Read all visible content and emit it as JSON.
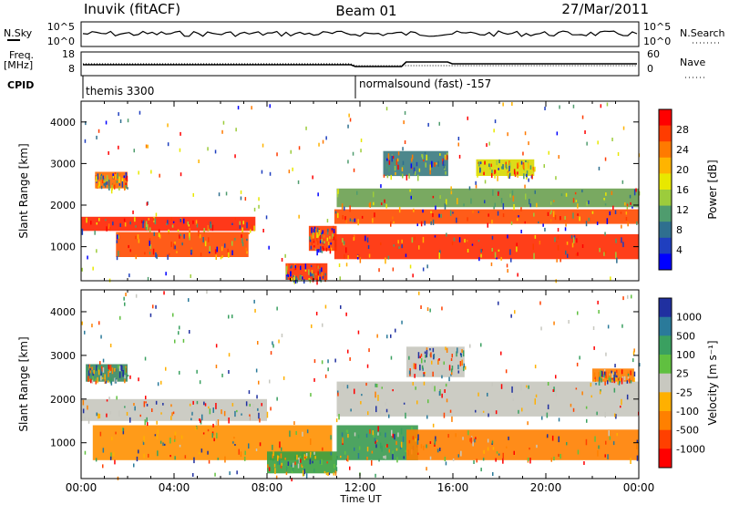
{
  "header": {
    "station": "Inuvik (fitACF)",
    "beam": "Beam 01",
    "date": "27/Mar/2011"
  },
  "strip": {
    "nsky_label": "N.Sky",
    "nsky_ticks": [
      "10^5",
      "10^0"
    ],
    "nsearch_label": "N.Search",
    "nsearch_ticks": [
      "10^5",
      "10^0"
    ],
    "freq_label": "Freq.",
    "freq_unit": "[MHz]",
    "freq_ticks": [
      "18",
      "8"
    ],
    "nave_label": "Nave",
    "nave_ticks": [
      "60",
      "0"
    ],
    "cpid_label": "CPID",
    "cpid_1": "themis 3300",
    "cpid_2": "normalsound (fast) -157"
  },
  "chart_data": [
    {
      "type": "heatmap",
      "panel": "power",
      "ylabel": "Slant Range [km]",
      "xlabel": "Time UT",
      "ylim": [
        180,
        4500
      ],
      "y_ticks": [
        1000,
        2000,
        3000,
        4000
      ],
      "x_ticks": [
        "00:00",
        "04:00",
        "08:00",
        "12:00",
        "16:00",
        "20:00",
        "00:00"
      ],
      "xlim_hours": [
        0,
        24
      ],
      "colorbar_label": "Power [dB]",
      "colorbar_ticks": [
        "28",
        "24",
        "20",
        "16",
        "12",
        "8",
        "4"
      ],
      "colorbar_colors": [
        "#ff0000",
        "#ff3c00",
        "#ff7a00",
        "#ffb400",
        "#e8e800",
        "#9ccc3c",
        "#4f9c6e",
        "#2f6f8f",
        "#1f3fbf",
        "#0000ff"
      ],
      "bands": [
        {
          "t0": 0.0,
          "t1": 7.5,
          "r0": 1380,
          "r1": 1720,
          "color": "#ff2200"
        },
        {
          "t0": 1.5,
          "t1": 7.2,
          "r0": 750,
          "r1": 1350,
          "color": "#ff4a00"
        },
        {
          "t0": 0.6,
          "t1": 2.0,
          "r0": 2400,
          "r1": 2800,
          "color": "#ff6a00"
        },
        {
          "t0": 7.8,
          "t1": 10.0,
          "r0": 200,
          "r1": 1000,
          "color": "#ffffff"
        },
        {
          "t0": 8.8,
          "t1": 10.6,
          "r0": 200,
          "r1": 600,
          "color": "#ff3000"
        },
        {
          "t0": 9.8,
          "t1": 11.0,
          "r0": 900,
          "r1": 1500,
          "color": "#ff3c00"
        },
        {
          "t0": 10.9,
          "t1": 24.0,
          "r0": 700,
          "r1": 1300,
          "color": "#ff2a00"
        },
        {
          "t0": 10.9,
          "t1": 24.0,
          "r0": 1550,
          "r1": 1900,
          "color": "#ff4a00"
        },
        {
          "t0": 11.0,
          "t1": 24.0,
          "r0": 1950,
          "r1": 2400,
          "color": "#6aa050"
        },
        {
          "t0": 13.0,
          "t1": 15.8,
          "r0": 2700,
          "r1": 3300,
          "color": "#3a7a80"
        },
        {
          "t0": 17.0,
          "t1": 19.5,
          "r0": 2700,
          "r1": 3100,
          "color": "#d8d800"
        }
      ]
    },
    {
      "type": "heatmap",
      "panel": "velocity",
      "ylabel": "Slant Range [km]",
      "xlabel": "Time UT",
      "ylim": [
        180,
        4500
      ],
      "y_ticks": [
        1000,
        2000,
        3000,
        4000
      ],
      "x_ticks": [
        "00:00",
        "04:00",
        "08:00",
        "12:00",
        "16:00",
        "20:00",
        "00:00"
      ],
      "xlim_hours": [
        0,
        24
      ],
      "colorbar_label": "Velocity [m s⁻¹]",
      "colorbar_ticks": [
        "1000",
        "500",
        "100",
        "25",
        "-25",
        "-100",
        "-500",
        "-1000"
      ],
      "colorbar_colors": [
        "#2030a0",
        "#2a7a9a",
        "#3aa060",
        "#60c040",
        "#c8c8c0",
        "#ffb000",
        "#ff8000",
        "#ff4000",
        "#ff0000"
      ],
      "bands": [
        {
          "t0": 0.0,
          "t1": 8.0,
          "r0": 1500,
          "r1": 2000,
          "color": "#c6c6be"
        },
        {
          "t0": 0.5,
          "t1": 10.8,
          "r0": 600,
          "r1": 1400,
          "color": "#ff9000"
        },
        {
          "t0": 0.2,
          "t1": 2.0,
          "r0": 2400,
          "r1": 2800,
          "color": "#3a8a60"
        },
        {
          "t0": 8.0,
          "t1": 11.0,
          "r0": 300,
          "r1": 800,
          "color": "#3aa040"
        },
        {
          "t0": 11.0,
          "t1": 14.5,
          "r0": 600,
          "r1": 1400,
          "color": "#3a9a50"
        },
        {
          "t0": 14.0,
          "t1": 24.0,
          "r0": 600,
          "r1": 1300,
          "color": "#ff8000"
        },
        {
          "t0": 11.0,
          "t1": 24.0,
          "r0": 1600,
          "r1": 2400,
          "color": "#c6c6be"
        },
        {
          "t0": 14.0,
          "t1": 16.5,
          "r0": 2500,
          "r1": 3200,
          "color": "#c6c6be"
        },
        {
          "t0": 22.0,
          "t1": 23.8,
          "r0": 2400,
          "r1": 2700,
          "color": "#ff8000"
        }
      ]
    }
  ]
}
